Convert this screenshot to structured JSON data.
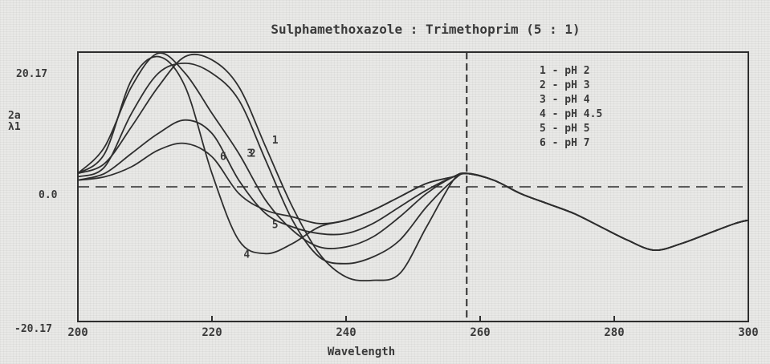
{
  "chart_data": {
    "type": "line",
    "title": "Sulphamethoxazole : Trimethoprim  (5 : 1)",
    "xlabel": "Wavelength",
    "ylabel": "",
    "y_axis_side_labels": [
      "2a",
      "λ1"
    ],
    "xlim": [
      200,
      300
    ],
    "ylim": [
      -20.17,
      20.17
    ],
    "x_ticks": [
      200,
      220,
      240,
      260,
      280,
      300
    ],
    "x_tick_labels": [
      "200",
      "220",
      "240",
      "260",
      "280",
      "300"
    ],
    "y_ticks": [
      -20.17,
      0.0,
      20.17
    ],
    "y_tick_labels": [
      "-20.17",
      "0.0",
      "20.17"
    ],
    "grid": false,
    "zero_line": {
      "style": "dashed",
      "y": 0.0
    },
    "vertical_marker": {
      "style": "dashed",
      "x": 258
    },
    "legend_placement": "top-right",
    "legend": [
      "1 - pH 2",
      "2 - pH 3",
      "3 - pH 4",
      "4 - pH 4.5",
      "5 - pH 5",
      "6 - pH 7"
    ],
    "curve_markers": [
      "1",
      "2",
      "3",
      "4",
      "5",
      "6"
    ],
    "series": [
      {
        "name": "1 - pH 2",
        "marker_label": "1",
        "points": [
          [
            200,
            2
          ],
          [
            204,
            3.5
          ],
          [
            208,
            9
          ],
          [
            212,
            15
          ],
          [
            216,
            19.5
          ],
          [
            220,
            19
          ],
          [
            224,
            15
          ],
          [
            228,
            6
          ],
          [
            232,
            -3
          ],
          [
            236,
            -10
          ],
          [
            240,
            -13.5
          ],
          [
            244,
            -14
          ],
          [
            248,
            -13
          ],
          [
            252,
            -6
          ],
          [
            256,
            1
          ],
          [
            258,
            2
          ],
          [
            262,
            1
          ],
          [
            266,
            -1
          ],
          [
            270,
            -2.5
          ],
          [
            274,
            -4
          ],
          [
            278,
            -6
          ],
          [
            282,
            -8
          ],
          [
            286,
            -9.5
          ],
          [
            290,
            -8.5
          ],
          [
            294,
            -7
          ],
          [
            298,
            -5.5
          ],
          [
            300,
            -5
          ]
        ]
      },
      {
        "name": "2 - pH 3",
        "marker_label": "2",
        "points": [
          [
            200,
            1.5
          ],
          [
            204,
            3
          ],
          [
            208,
            11
          ],
          [
            212,
            17
          ],
          [
            216,
            18.5
          ],
          [
            220,
            17
          ],
          [
            224,
            13
          ],
          [
            228,
            4
          ],
          [
            232,
            -5
          ],
          [
            236,
            -10.5
          ],
          [
            240,
            -11.5
          ],
          [
            244,
            -10.5
          ],
          [
            248,
            -8
          ],
          [
            252,
            -3
          ],
          [
            256,
            1
          ],
          [
            258,
            2
          ],
          [
            262,
            1
          ],
          [
            266,
            -1
          ],
          [
            270,
            -2.5
          ],
          [
            274,
            -4
          ],
          [
            278,
            -6
          ],
          [
            282,
            -8
          ],
          [
            286,
            -9.5
          ],
          [
            290,
            -8.5
          ],
          [
            294,
            -7
          ],
          [
            298,
            -5.5
          ],
          [
            300,
            -5
          ]
        ]
      },
      {
        "name": "3 - pH 4",
        "marker_label": "3",
        "points": [
          [
            200,
            2
          ],
          [
            204,
            6
          ],
          [
            208,
            15
          ],
          [
            212,
            20
          ],
          [
            216,
            17
          ],
          [
            220,
            11
          ],
          [
            224,
            5
          ],
          [
            228,
            -2
          ],
          [
            232,
            -6.5
          ],
          [
            236,
            -9
          ],
          [
            240,
            -9
          ],
          [
            244,
            -7.5
          ],
          [
            248,
            -4.5
          ],
          [
            252,
            -1
          ],
          [
            256,
            1.5
          ],
          [
            258,
            2
          ],
          [
            262,
            1
          ],
          [
            266,
            -1
          ],
          [
            270,
            -2.5
          ],
          [
            274,
            -4
          ],
          [
            278,
            -6
          ],
          [
            282,
            -8
          ],
          [
            286,
            -9.5
          ],
          [
            290,
            -8.5
          ],
          [
            294,
            -7
          ],
          [
            298,
            -5.5
          ],
          [
            300,
            -5
          ]
        ]
      },
      {
        "name": "4 - pH 4.5",
        "marker_label": "4",
        "points": [
          [
            200,
            2
          ],
          [
            204,
            5
          ],
          [
            208,
            16
          ],
          [
            212,
            19.5
          ],
          [
            216,
            15
          ],
          [
            220,
            2
          ],
          [
            224,
            -8
          ],
          [
            228,
            -10
          ],
          [
            232,
            -8.5
          ],
          [
            236,
            -6
          ],
          [
            240,
            -5
          ],
          [
            244,
            -3.5
          ],
          [
            248,
            -1.5
          ],
          [
            252,
            0.5
          ],
          [
            256,
            1.5
          ],
          [
            258,
            2
          ],
          [
            262,
            1
          ],
          [
            266,
            -1
          ],
          [
            270,
            -2.5
          ],
          [
            274,
            -4
          ],
          [
            278,
            -6
          ],
          [
            282,
            -8
          ],
          [
            286,
            -9.5
          ],
          [
            290,
            -8.5
          ],
          [
            294,
            -7
          ],
          [
            298,
            -5.5
          ],
          [
            300,
            -5
          ]
        ]
      },
      {
        "name": "5 - pH 5",
        "marker_label": "5",
        "points": [
          [
            200,
            1
          ],
          [
            204,
            2
          ],
          [
            208,
            5
          ],
          [
            212,
            8
          ],
          [
            216,
            10
          ],
          [
            220,
            8
          ],
          [
            224,
            1
          ],
          [
            228,
            -4
          ],
          [
            232,
            -6
          ],
          [
            236,
            -7
          ],
          [
            240,
            -7
          ],
          [
            244,
            -5.5
          ],
          [
            248,
            -3
          ],
          [
            252,
            -0.5
          ],
          [
            256,
            1.5
          ],
          [
            258,
            2
          ],
          [
            262,
            1
          ],
          [
            266,
            -1
          ],
          [
            270,
            -2.5
          ],
          [
            274,
            -4
          ],
          [
            278,
            -6
          ],
          [
            282,
            -8
          ],
          [
            286,
            -9.5
          ],
          [
            290,
            -8.5
          ],
          [
            294,
            -7
          ],
          [
            298,
            -5.5
          ],
          [
            300,
            -5
          ]
        ]
      },
      {
        "name": "6 - pH 7",
        "marker_label": "6",
        "points": [
          [
            200,
            1
          ],
          [
            204,
            1.5
          ],
          [
            208,
            3
          ],
          [
            212,
            5.5
          ],
          [
            216,
            6.5
          ],
          [
            220,
            4.5
          ],
          [
            224,
            -1
          ],
          [
            228,
            -3.5
          ],
          [
            232,
            -4.5
          ],
          [
            236,
            -5.5
          ],
          [
            240,
            -5
          ],
          [
            244,
            -3.5
          ],
          [
            248,
            -1.5
          ],
          [
            252,
            0.5
          ],
          [
            256,
            1.5
          ],
          [
            258,
            2
          ],
          [
            262,
            1
          ],
          [
            266,
            -1
          ],
          [
            270,
            -2.5
          ],
          [
            274,
            -4
          ],
          [
            278,
            -6
          ],
          [
            282,
            -8
          ],
          [
            286,
            -9.5
          ],
          [
            290,
            -8.5
          ],
          [
            294,
            -7
          ],
          [
            298,
            -5.5
          ],
          [
            300,
            -5
          ]
        ]
      }
    ],
    "colors": {
      "ink": "#2e2e2e",
      "background": "#e9e9e7"
    }
  }
}
